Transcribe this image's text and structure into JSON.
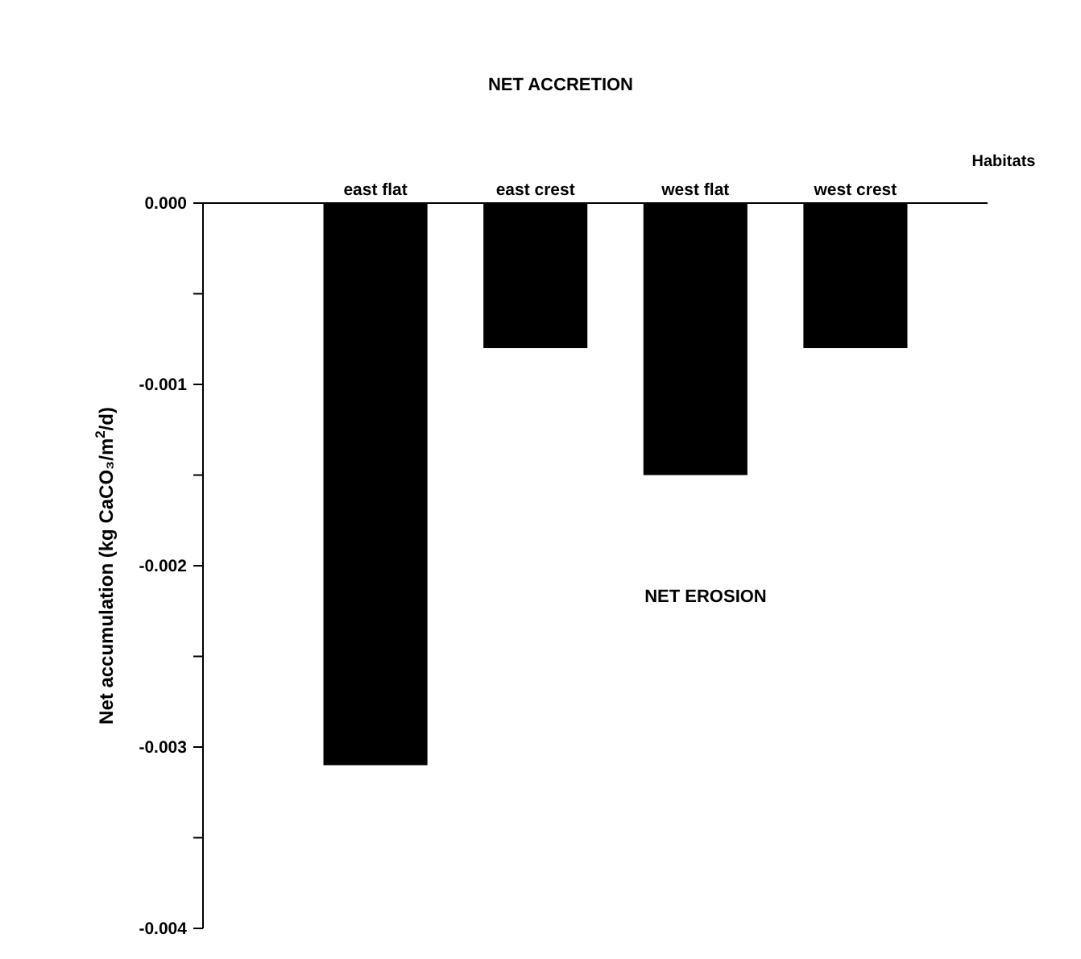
{
  "chart_data": {
    "type": "bar",
    "title": "NET ACCRETION",
    "xlabel": "Habitats",
    "ylabel": "Net accumulation (kg CaCO₃/m$^{2}$/d)",
    "categories": [
      "east flat",
      "east crest",
      "west flat",
      "west crest"
    ],
    "values": [
      -0.0031,
      -0.0008,
      -0.0015,
      -0.0008
    ],
    "color": "#000000",
    "ylim": [
      -0.004,
      0
    ],
    "yticks": [
      {
        "value": 0,
        "label": "0.000"
      },
      {
        "value": -0.0005,
        "label": null
      },
      {
        "value": -0.001,
        "label": "-0.001"
      },
      {
        "value": -0.0015,
        "label": null
      },
      {
        "value": -0.002,
        "label": "-0.002"
      },
      {
        "value": -0.0025,
        "label": null
      },
      {
        "value": -0.003,
        "label": "-0.003"
      },
      {
        "value": -0.0035,
        "label": null
      },
      {
        "value": -0.004,
        "label": "-0.004"
      }
    ],
    "annotations": [
      "NET EROSION"
    ],
    "grid": false
  }
}
